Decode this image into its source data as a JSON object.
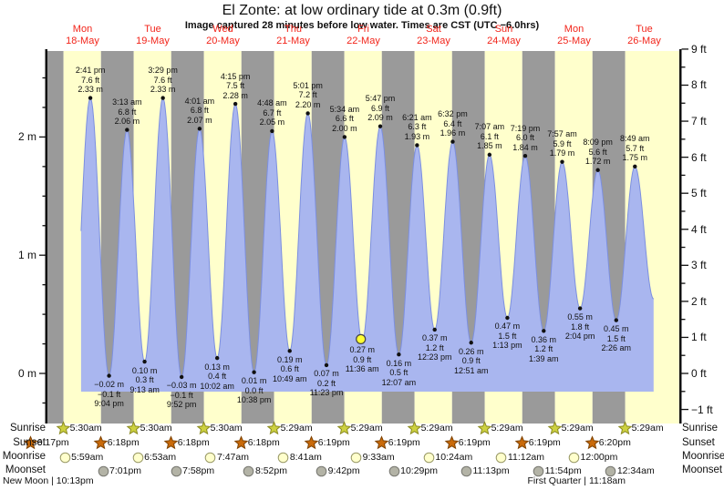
{
  "title": "El Zonte: at low ordinary tide at 0.3m (0.9ft)",
  "subtitle": "Image captured 28 minutes before low water. Times are CST (UTC −6.0hrs)",
  "days": [
    {
      "dow": "Mon",
      "date": "18-May"
    },
    {
      "dow": "Tue",
      "date": "19-May"
    },
    {
      "dow": "Wed",
      "date": "20-May"
    },
    {
      "dow": "Thu",
      "date": "21-May"
    },
    {
      "dow": "Fri",
      "date": "22-May"
    },
    {
      "dow": "Sat",
      "date": "23-May"
    },
    {
      "dow": "Sun",
      "date": "24-May"
    },
    {
      "dow": "Mon",
      "date": "25-May"
    },
    {
      "dow": "Tue",
      "date": "26-May"
    }
  ],
  "y_axis_left": {
    "ticks": [
      {
        "label": "2 m",
        "value": 2
      },
      {
        "label": "1 m",
        "value": 1
      },
      {
        "label": "0 m",
        "value": 0
      }
    ]
  },
  "y_axis_right": {
    "ticks": [
      {
        "label": "9 ft",
        "value": 9
      },
      {
        "label": "8 ft",
        "value": 8
      },
      {
        "label": "7 ft",
        "value": 7
      },
      {
        "label": "6 ft",
        "value": 6
      },
      {
        "label": "5 ft",
        "value": 5
      },
      {
        "label": "4 ft",
        "value": 4
      },
      {
        "label": "3 ft",
        "value": 3
      },
      {
        "label": "2 ft",
        "value": 2
      },
      {
        "label": "1 ft",
        "value": 1
      },
      {
        "label": "0 ft",
        "value": 0
      },
      {
        "label": "−1 ft",
        "value": -1
      }
    ]
  },
  "chart_data": {
    "type": "area",
    "x_start": "18-May 00:00",
    "hours_span": 216,
    "curve_start_t": 11.4,
    "pre_event": {
      "t": 8.3,
      "m_val": 0.08
    },
    "curve_end": {
      "t": 207.2,
      "m_val": 0.63
    },
    "events": [
      {
        "t": 14.68,
        "time": "2:41 pm",
        "ft": "7.6",
        "m": "2.33",
        "m_val": 2.33,
        "type": "high"
      },
      {
        "t": 21.07,
        "time": "9:04 pm",
        "ft": "−0.1",
        "m": "−0.02",
        "m_val": -0.02,
        "type": "low"
      },
      {
        "t": 27.22,
        "time": "3:13 am",
        "ft": "6.8",
        "m": "2.06",
        "m_val": 2.06,
        "type": "high"
      },
      {
        "t": 33.22,
        "time": "9:13 am",
        "ft": "0.3",
        "m": "0.10",
        "m_val": 0.1,
        "type": "low"
      },
      {
        "t": 39.48,
        "time": "3:29 pm",
        "ft": "7.6",
        "m": "2.33",
        "m_val": 2.33,
        "type": "high"
      },
      {
        "t": 45.87,
        "time": "9:52 pm",
        "ft": "−0.1",
        "m": "−0.03",
        "m_val": -0.03,
        "type": "low"
      },
      {
        "t": 52.02,
        "time": "4:01 am",
        "ft": "6.8",
        "m": "2.07",
        "m_val": 2.07,
        "type": "high"
      },
      {
        "t": 58.03,
        "time": "10:02 am",
        "ft": "0.4",
        "m": "0.13",
        "m_val": 0.13,
        "type": "low"
      },
      {
        "t": 64.25,
        "time": "4:15 pm",
        "ft": "7.5",
        "m": "2.28",
        "m_val": 2.28,
        "type": "high"
      },
      {
        "t": 70.63,
        "time": "10:38 pm",
        "ft": "0.0",
        "m": "0.01",
        "m_val": 0.01,
        "type": "low"
      },
      {
        "t": 76.8,
        "time": "4:48 am",
        "ft": "6.7",
        "m": "2.05",
        "m_val": 2.05,
        "type": "high"
      },
      {
        "t": 82.82,
        "time": "10:49 am",
        "ft": "0.6",
        "m": "0.19",
        "m_val": 0.19,
        "type": "low"
      },
      {
        "t": 89.02,
        "time": "5:01 pm",
        "ft": "7.2",
        "m": "2.20",
        "m_val": 2.2,
        "type": "high"
      },
      {
        "t": 95.38,
        "time": "11:23 pm",
        "ft": "0.2",
        "m": "0.07",
        "m_val": 0.07,
        "type": "low"
      },
      {
        "t": 101.57,
        "time": "5:34 am",
        "ft": "6.6",
        "m": "2.00",
        "m_val": 2.0,
        "type": "high"
      },
      {
        "t": 107.6,
        "time": "11:36 am",
        "ft": "0.9",
        "m": "0.27",
        "m_val": 0.27,
        "type": "low"
      },
      {
        "t": 113.78,
        "time": "5:47 pm",
        "ft": "6.9",
        "m": "2.09",
        "m_val": 2.09,
        "type": "high"
      },
      {
        "t": 120.12,
        "time": "12:07 am",
        "ft": "0.5",
        "m": "0.16",
        "m_val": 0.16,
        "type": "low"
      },
      {
        "t": 126.35,
        "time": "6:21 am",
        "ft": "6.3",
        "m": "1.93",
        "m_val": 1.93,
        "type": "high"
      },
      {
        "t": 132.38,
        "time": "12:23 pm",
        "ft": "1.2",
        "m": "0.37",
        "m_val": 0.37,
        "type": "low"
      },
      {
        "t": 138.53,
        "time": "6:32 pm",
        "ft": "6.4",
        "m": "1.96",
        "m_val": 1.96,
        "type": "high"
      },
      {
        "t": 144.85,
        "time": "12:51 am",
        "ft": "0.9",
        "m": "0.26",
        "m_val": 0.26,
        "type": "low"
      },
      {
        "t": 151.12,
        "time": "7:07 am",
        "ft": "6.1",
        "m": "1.85",
        "m_val": 1.85,
        "type": "high"
      },
      {
        "t": 157.22,
        "time": "1:13 pm",
        "ft": "1.5",
        "m": "0.47",
        "m_val": 0.47,
        "type": "low"
      },
      {
        "t": 163.32,
        "time": "7:19 pm",
        "ft": "6.0",
        "m": "1.84",
        "m_val": 1.84,
        "type": "high"
      },
      {
        "t": 169.65,
        "time": "1:39 am",
        "ft": "1.2",
        "m": "0.36",
        "m_val": 0.36,
        "type": "low"
      },
      {
        "t": 175.95,
        "time": "7:57 am",
        "ft": "5.9",
        "m": "1.79",
        "m_val": 1.79,
        "type": "high"
      },
      {
        "t": 182.07,
        "time": "2:04 pm",
        "ft": "1.8",
        "m": "0.55",
        "m_val": 0.55,
        "type": "low"
      },
      {
        "t": 188.15,
        "time": "8:09 pm",
        "ft": "5.6",
        "m": "1.72",
        "m_val": 1.72,
        "type": "high"
      },
      {
        "t": 194.43,
        "time": "2:26 am",
        "ft": "1.5",
        "m": "0.45",
        "m_val": 0.45,
        "type": "low"
      },
      {
        "t": 200.82,
        "time": "8:49 am",
        "ft": "5.7",
        "m": "1.75",
        "m_val": 1.75,
        "type": "high"
      }
    ],
    "current_marker": {
      "t": 107.13,
      "m_val": 0.29,
      "note": "28 minutes before low water"
    }
  },
  "sun_moon": {
    "rows": [
      {
        "id": "sunrise",
        "label": "Sunrise",
        "icon": "sunrise-star",
        "entries": [
          {
            "t": 5.5,
            "time": "5:30am"
          },
          {
            "t": 29.5,
            "time": "5:30am"
          },
          {
            "t": 53.5,
            "time": "5:30am"
          },
          {
            "t": 77.48,
            "time": "5:29am"
          },
          {
            "t": 101.48,
            "time": "5:29am"
          },
          {
            "t": 125.48,
            "time": "5:29am"
          },
          {
            "t": 149.48,
            "time": "5:29am"
          },
          {
            "t": 173.48,
            "time": "5:29am"
          },
          {
            "t": 197.48,
            "time": "5:29am"
          }
        ]
      },
      {
        "id": "sunset",
        "label": "Sunset",
        "icon": "sunset-star",
        "entries": [
          {
            "t": -5.72,
            "time": "6:17pm"
          },
          {
            "t": 18.3,
            "time": "6:18pm"
          },
          {
            "t": 42.3,
            "time": "6:18pm"
          },
          {
            "t": 66.3,
            "time": "6:18pm"
          },
          {
            "t": 90.32,
            "time": "6:19pm"
          },
          {
            "t": 114.32,
            "time": "6:19pm"
          },
          {
            "t": 138.32,
            "time": "6:19pm"
          },
          {
            "t": 162.32,
            "time": "6:19pm"
          },
          {
            "t": 186.33,
            "time": "6:20pm"
          }
        ]
      },
      {
        "id": "moonrise",
        "label": "Moonrise",
        "icon": "moonrise-circle",
        "entries": [
          {
            "t": 5.98,
            "time": "5:59am"
          },
          {
            "t": 30.88,
            "time": "6:53am"
          },
          {
            "t": 55.78,
            "time": "7:47am"
          },
          {
            "t": 80.68,
            "time": "8:41am"
          },
          {
            "t": 105.55,
            "time": "9:33am"
          },
          {
            "t": 130.4,
            "time": "10:24am"
          },
          {
            "t": 155.2,
            "time": "11:12am"
          },
          {
            "t": 180.0,
            "time": "12:00pm"
          }
        ]
      },
      {
        "id": "moonset",
        "label": "Moonset",
        "icon": "moonset-circle",
        "entries": [
          {
            "t": 19.02,
            "time": "7:01pm"
          },
          {
            "t": 43.97,
            "time": "7:58pm"
          },
          {
            "t": 68.87,
            "time": "8:52pm"
          },
          {
            "t": 93.7,
            "time": "9:42pm"
          },
          {
            "t": 118.48,
            "time": "10:29pm"
          },
          {
            "t": 143.22,
            "time": "11:13pm"
          },
          {
            "t": 167.9,
            "time": "11:54pm"
          },
          {
            "t": 192.57,
            "time": "12:34am"
          }
        ]
      }
    ],
    "phases": [
      {
        "name": "New Moon",
        "time": "10:13pm",
        "t": -1.8
      },
      {
        "name": "First Quarter",
        "time": "11:18am",
        "t": 179.3
      }
    ]
  },
  "colors": {
    "day_band": "#ffffcc",
    "night_band": "#9a9a9a",
    "tide_fill": "#a9b6ef",
    "tide_stroke": "#7c8fe0",
    "date_red": "#f2241a",
    "axis": "#111111",
    "sunrise_star": "#cdd13f",
    "sunrise_star_edge": "#8a8a20",
    "sunset_star": "#c96a0a",
    "sunset_star_edge": "#7e4200",
    "moonrise_fill": "#ffffcc",
    "moonrise_edge": "#999966",
    "moonset_fill": "#b3b3a6",
    "moonset_edge": "#777770",
    "marker_yellow": "#ffff33",
    "dot": "#111111"
  }
}
